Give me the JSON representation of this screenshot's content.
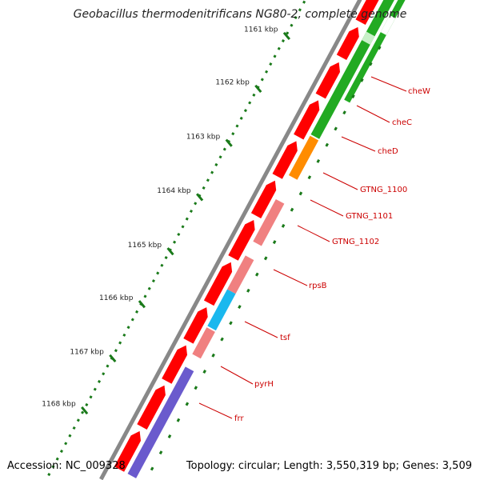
{
  "title": "Geobacillus thermodenitrificans NG80-2, complete genome",
  "footer": {
    "accession_label": "Accession: NC_009328",
    "summary_label": "Topology: circular; Length: 3,550,319 bp; Genes: 3,509"
  },
  "colors": {
    "backbone": "#888888",
    "ticks": "#1a7a1a",
    "gene_label": "#cc0000",
    "cds_forward": "#ff0000",
    "cds_reverse": "#f08080",
    "track_green": "#22aa22",
    "track_orange": "#ff8c00",
    "track_blue": "#1ab8ee",
    "track_purple": "#6a5acd"
  },
  "kbp_ticks": [
    {
      "label": "1161 kbp"
    },
    {
      "label": "1162 kbp"
    },
    {
      "label": "1163 kbp"
    },
    {
      "label": "1164 kbp"
    },
    {
      "label": "1165 kbp"
    },
    {
      "label": "1166 kbp"
    },
    {
      "label": "1167 kbp"
    },
    {
      "label": "1168 kbp"
    }
  ],
  "gene_labels": [
    {
      "name": "cheW"
    },
    {
      "name": "cheC"
    },
    {
      "name": "cheD"
    },
    {
      "name": "GTNG_1100"
    },
    {
      "name": "GTNG_1101"
    },
    {
      "name": "GTNG_1102"
    },
    {
      "name": "rpsB"
    },
    {
      "name": "tsf"
    },
    {
      "name": "pyrH"
    },
    {
      "name": "frr"
    }
  ]
}
